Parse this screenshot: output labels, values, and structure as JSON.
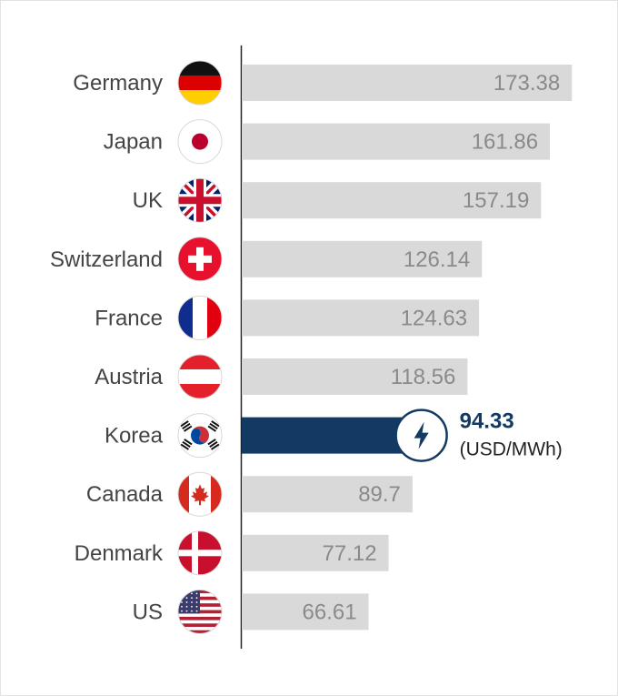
{
  "chart_data": {
    "type": "bar",
    "orientation": "horizontal",
    "categories": [
      "Germany",
      "Japan",
      "UK",
      "Switzerland",
      "France",
      "Austria",
      "Korea",
      "Canada",
      "Denmark",
      "US"
    ],
    "values": [
      173.38,
      161.86,
      157.19,
      126.14,
      124.63,
      118.56,
      94.33,
      89.7,
      77.12,
      66.61
    ],
    "value_labels": [
      "173.38",
      "161.86",
      "157.19",
      "126.14",
      "124.63",
      "118.56",
      "94.33",
      "89.7",
      "77.12",
      "66.61"
    ],
    "highlight": {
      "category": "Korea",
      "value_label": "94.33",
      "unit": "(USD/MWh)",
      "icon": "lightning-bolt-icon"
    },
    "flags": [
      "germany-flag-icon",
      "japan-flag-icon",
      "uk-flag-icon",
      "switzerland-flag-icon",
      "france-flag-icon",
      "austria-flag-icon",
      "korea-flag-icon",
      "canada-flag-icon",
      "denmark-flag-icon",
      "us-flag-icon"
    ],
    "grid": false,
    "colors": {
      "bar": "#d9d9d9",
      "highlight_bar": "#123a63",
      "value_text": "#8a8a8a",
      "label_text": "#444444"
    }
  }
}
